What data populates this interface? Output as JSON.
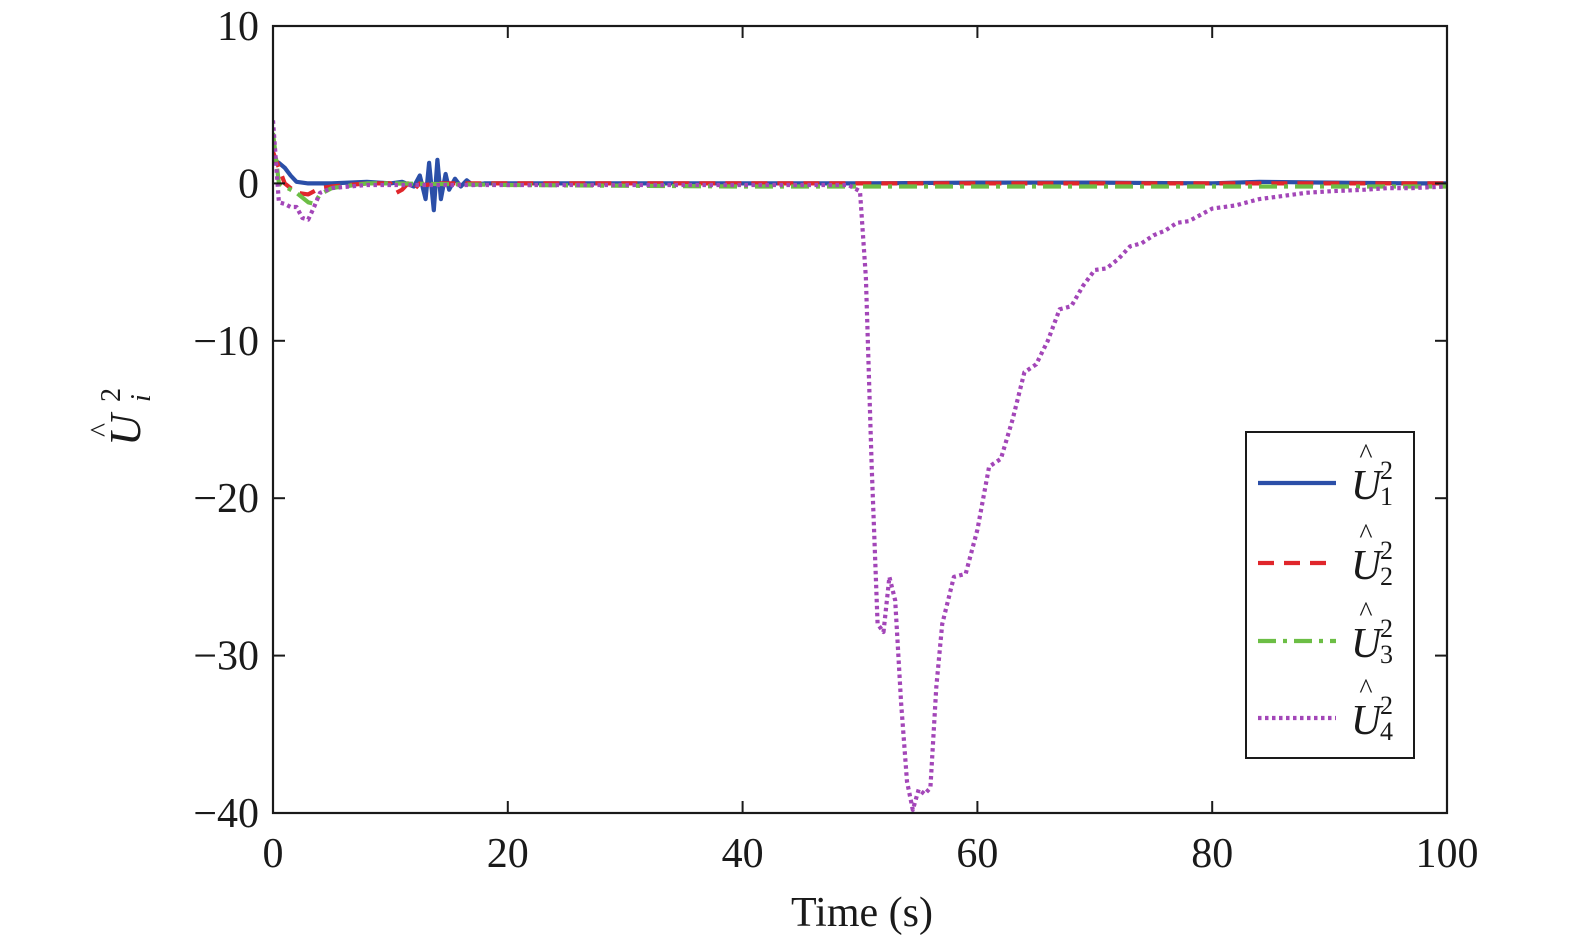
{
  "chart_data": {
    "type": "line",
    "title": "",
    "xlabel": "Time (s)",
    "ylabel": {
      "base": "U",
      "hat": "^",
      "sup": "2",
      "sub": "i"
    },
    "xlim": [
      0,
      100
    ],
    "ylim": [
      -40,
      10
    ],
    "x_ticks": [
      0,
      20,
      40,
      60,
      80,
      100
    ],
    "y_ticks": [
      10,
      0,
      -10,
      -20,
      -30,
      -40
    ],
    "x_tick_labels": [
      "0",
      "20",
      "40",
      "60",
      "80",
      "100"
    ],
    "y_tick_labels": [
      "10",
      "0",
      "−10",
      "−20",
      "−30",
      "−40"
    ],
    "grid": false,
    "legend_position": "right",
    "series": [
      {
        "name": "Û₁²",
        "legend": {
          "base": "U",
          "sup": "2",
          "sub": "1"
        },
        "color": "#2b4fa8",
        "dash": "solid",
        "x": [
          0,
          0.5,
          1,
          1.5,
          2,
          3,
          5,
          8,
          10,
          11,
          12,
          12.5,
          13,
          13.3,
          13.7,
          14,
          14.3,
          14.7,
          15,
          15.5,
          16,
          16.5,
          17,
          18,
          20,
          30,
          40,
          50,
          60,
          70,
          80,
          84,
          90,
          97,
          100
        ],
        "y": [
          1.5,
          1.3,
          1.0,
          0.5,
          0.1,
          0.0,
          0.0,
          0.1,
          0.0,
          0.1,
          -0.2,
          0.5,
          -1.0,
          1.3,
          -1.7,
          1.5,
          -1.0,
          0.6,
          -0.4,
          0.3,
          -0.2,
          0.2,
          -0.1,
          0.0,
          0.0,
          0.0,
          0.0,
          0.0,
          0.05,
          0.05,
          0.0,
          0.1,
          0.05,
          0.0,
          0.0
        ]
      },
      {
        "name": "Û₂²",
        "legend": {
          "base": "U",
          "sup": "2",
          "sub": "2"
        },
        "color": "#e0262b",
        "dash": "dashed",
        "x": [
          0,
          1,
          2,
          3,
          4,
          5,
          8,
          10,
          10.5,
          11,
          11.5,
          12,
          12.5,
          13,
          14,
          20,
          40,
          60,
          80,
          100
        ],
        "y": [
          2.0,
          0.0,
          -0.6,
          -0.7,
          -0.3,
          -0.2,
          0.0,
          0.0,
          -0.6,
          -0.4,
          0.0,
          -0.4,
          0.0,
          -0.1,
          0.0,
          0.0,
          0.0,
          0.0,
          0.0,
          0.0
        ]
      },
      {
        "name": "Û₃²",
        "legend": {
          "base": "U",
          "sup": "2",
          "sub": "3"
        },
        "color": "#6cbe45",
        "dash": "dashdot",
        "x": [
          0,
          0.5,
          1,
          2,
          3,
          3.5,
          4,
          5,
          6,
          7,
          8,
          10,
          20,
          40,
          60,
          80,
          100
        ],
        "y": [
          3.2,
          0.0,
          -0.2,
          -0.6,
          -1.2,
          -1.3,
          -0.7,
          -0.3,
          -0.2,
          -0.1,
          0.0,
          0.0,
          -0.1,
          -0.2,
          -0.2,
          -0.2,
          -0.2
        ]
      },
      {
        "name": "Û₄²",
        "legend": {
          "base": "U",
          "sup": "2",
          "sub": "4"
        },
        "color": "#a346b8",
        "dash": "dotted",
        "x": [
          0,
          0.5,
          1,
          1.5,
          2,
          2.5,
          3,
          3.5,
          4,
          5,
          8,
          10,
          20,
          30,
          40,
          49,
          50,
          50.5,
          51,
          51.5,
          52,
          52.5,
          53,
          53.5,
          54,
          54.5,
          55,
          55.5,
          56,
          56.5,
          57,
          58,
          59,
          60,
          61,
          62,
          63,
          64,
          65,
          66,
          67,
          68,
          69,
          70,
          71,
          72,
          73,
          74,
          75,
          76,
          77,
          78,
          79,
          80,
          82,
          84,
          86,
          88,
          90,
          93,
          95,
          97,
          100
        ],
        "y": [
          4.0,
          -1.2,
          -1.3,
          -1.5,
          -1.5,
          -2.2,
          -2.3,
          -1.5,
          -0.6,
          -0.3,
          -0.1,
          -0.1,
          -0.1,
          -0.1,
          -0.1,
          -0.1,
          -0.5,
          -6.0,
          -18.0,
          -28.0,
          -28.5,
          -25.0,
          -26.5,
          -33.0,
          -38.0,
          -39.8,
          -38.5,
          -38.8,
          -38.4,
          -32.0,
          -28.0,
          -25.0,
          -24.8,
          -22.0,
          -18.0,
          -17.5,
          -15.0,
          -12.0,
          -11.5,
          -10.0,
          -8.0,
          -7.8,
          -6.5,
          -5.5,
          -5.4,
          -4.8,
          -4.0,
          -3.8,
          -3.3,
          -3.0,
          -2.5,
          -2.4,
          -2.0,
          -1.6,
          -1.4,
          -1.0,
          -0.8,
          -0.6,
          -0.5,
          -0.4,
          -0.3,
          -0.3,
          -0.2
        ]
      }
    ]
  }
}
